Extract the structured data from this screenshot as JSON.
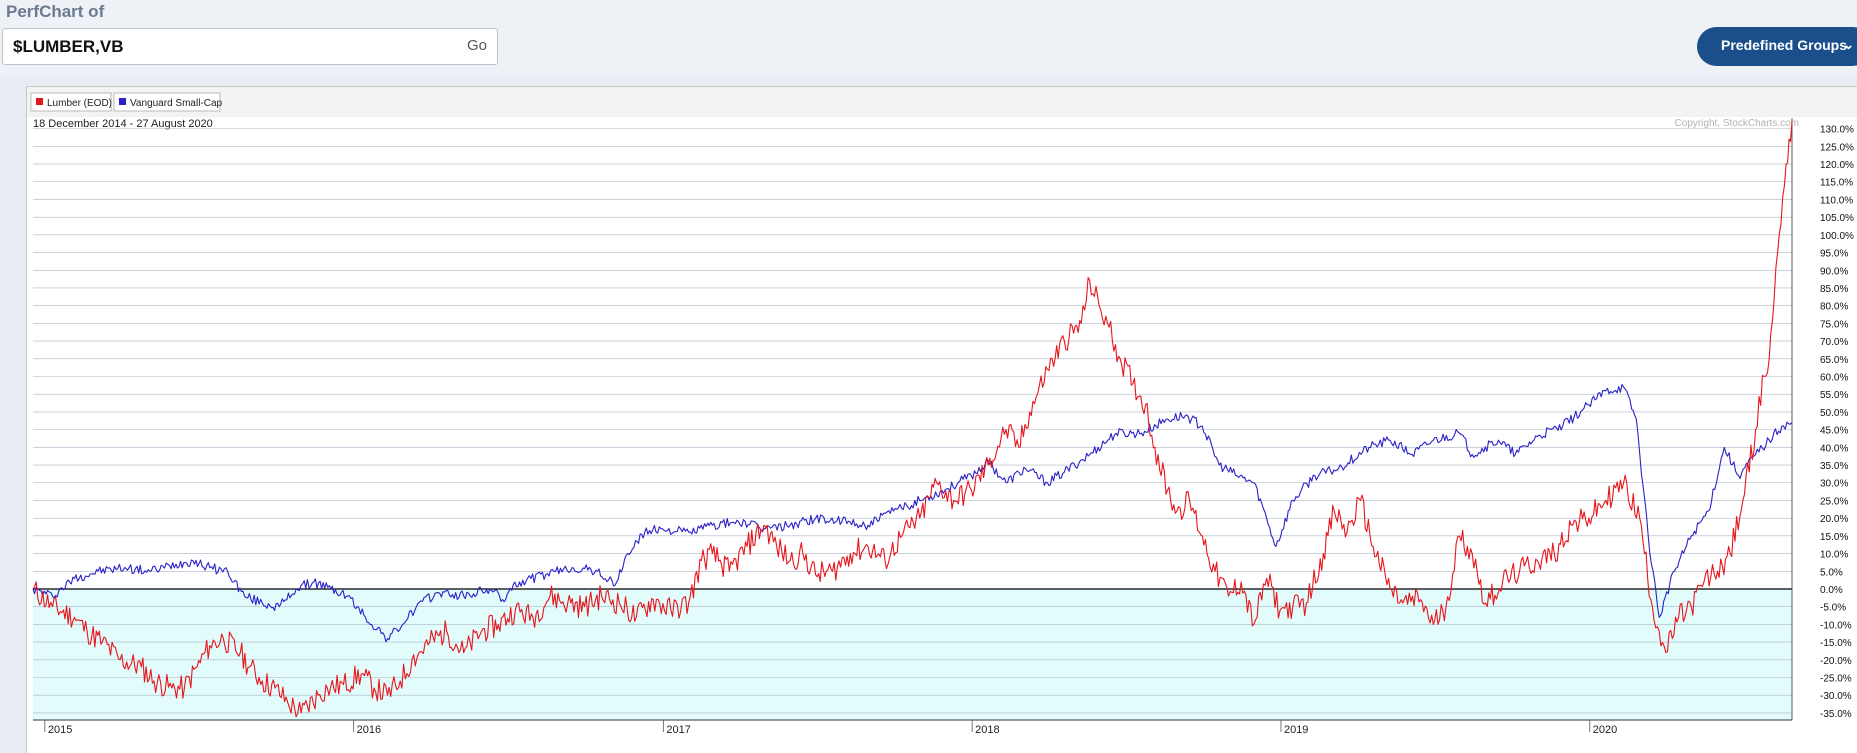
{
  "header": {
    "title": "PerfChart of",
    "symbols_value": "$LUMBER,VB",
    "go_label": "Go",
    "predefined_label": "Predefined Groups"
  },
  "colors": {
    "lumber": "#e8141b",
    "vb": "#2a22c8",
    "accent": "#1a4f8b",
    "negative_fill": "#e2fcfc"
  },
  "legend": [
    {
      "label": "Lumber (EOD)",
      "color": "#e8141b"
    },
    {
      "label": "Vanguard Small-Cap",
      "color": "#2a22c8"
    }
  ],
  "chart_data": {
    "type": "line",
    "date_range": "18 December 2014 - 27 August 2020",
    "copyright": "Copyright, StockCharts.com",
    "xlabels": [
      "2015",
      "2016",
      "2017",
      "2018",
      "2019",
      "2020"
    ],
    "x_range": [
      "2014-12-18",
      "2020-08-27"
    ],
    "y_range": [
      -37,
      133
    ],
    "y_ticks": [
      130,
      125,
      120,
      115,
      110,
      105,
      100,
      95,
      90,
      85,
      80,
      75,
      70,
      65,
      60,
      55,
      50,
      45,
      40,
      35,
      30,
      25,
      20,
      15,
      10,
      5,
      0,
      -5,
      -10,
      -15,
      -20,
      -25,
      -30,
      -35
    ],
    "y_unit": "%",
    "grid": true,
    "legend_position": "top-left",
    "series": [
      {
        "name": "Lumber (EOD)",
        "points": [
          [
            "2014-12-18",
            0
          ],
          [
            "2015-01-10",
            -5
          ],
          [
            "2015-02-05",
            -8
          ],
          [
            "2015-02-20",
            -12
          ],
          [
            "2015-03-10",
            -15
          ],
          [
            "2015-03-31",
            -20
          ],
          [
            "2015-04-25",
            -22
          ],
          [
            "2015-05-10",
            -26
          ],
          [
            "2015-05-31",
            -28
          ],
          [
            "2015-06-15",
            -28
          ],
          [
            "2015-06-30",
            -22
          ],
          [
            "2015-07-15",
            -16
          ],
          [
            "2015-07-31",
            -14
          ],
          [
            "2015-08-20",
            -18
          ],
          [
            "2015-08-31",
            -22
          ],
          [
            "2015-09-15",
            -26
          ],
          [
            "2015-09-30",
            -28
          ],
          [
            "2015-10-15",
            -32
          ],
          [
            "2015-10-31",
            -35
          ],
          [
            "2015-11-20",
            -30
          ],
          [
            "2015-12-01",
            -28
          ],
          [
            "2015-12-20",
            -27
          ],
          [
            "2016-01-10",
            -24
          ],
          [
            "2016-01-25",
            -28
          ],
          [
            "2016-02-10",
            -30
          ],
          [
            "2016-02-25",
            -26
          ],
          [
            "2016-03-10",
            -20
          ],
          [
            "2016-03-31",
            -15
          ],
          [
            "2016-04-20",
            -12
          ],
          [
            "2016-05-10",
            -18
          ],
          [
            "2016-05-31",
            -12
          ],
          [
            "2016-06-20",
            -10
          ],
          [
            "2016-07-10",
            -6
          ],
          [
            "2016-07-31",
            -8
          ],
          [
            "2016-08-20",
            -2
          ],
          [
            "2016-09-10",
            -4
          ],
          [
            "2016-09-30",
            -5
          ],
          [
            "2016-10-20",
            -2
          ],
          [
            "2016-11-10",
            -4
          ],
          [
            "2016-11-30",
            -8
          ],
          [
            "2016-12-20",
            -3
          ],
          [
            "2017-01-10",
            -6
          ],
          [
            "2017-01-31",
            -4
          ],
          [
            "2017-02-15",
            8
          ],
          [
            "2017-02-28",
            10
          ],
          [
            "2017-03-20",
            5
          ],
          [
            "2017-04-10",
            12
          ],
          [
            "2017-04-30",
            18
          ],
          [
            "2017-05-15",
            12
          ],
          [
            "2017-05-31",
            8
          ],
          [
            "2017-06-15",
            10
          ],
          [
            "2017-06-30",
            4
          ],
          [
            "2017-07-20",
            5
          ],
          [
            "2017-08-10",
            10
          ],
          [
            "2017-08-31",
            12
          ],
          [
            "2017-09-20",
            8
          ],
          [
            "2017-10-10",
            15
          ],
          [
            "2017-10-31",
            20
          ],
          [
            "2017-11-20",
            30
          ],
          [
            "2017-12-10",
            25
          ],
          [
            "2017-12-31",
            28
          ],
          [
            "2018-01-20",
            35
          ],
          [
            "2018-02-10",
            45
          ],
          [
            "2018-02-25",
            40
          ],
          [
            "2018-03-10",
            50
          ],
          [
            "2018-03-31",
            62
          ],
          [
            "2018-04-20",
            70
          ],
          [
            "2018-05-10",
            75
          ],
          [
            "2018-05-20",
            87
          ],
          [
            "2018-05-31",
            80
          ],
          [
            "2018-06-10",
            75
          ],
          [
            "2018-06-25",
            65
          ],
          [
            "2018-07-10",
            58
          ],
          [
            "2018-07-25",
            52
          ],
          [
            "2018-08-05",
            40
          ],
          [
            "2018-08-20",
            28
          ],
          [
            "2018-08-31",
            22
          ],
          [
            "2018-09-15",
            25
          ],
          [
            "2018-09-30",
            15
          ],
          [
            "2018-10-15",
            5
          ],
          [
            "2018-10-31",
            -2
          ],
          [
            "2018-11-15",
            2
          ],
          [
            "2018-11-30",
            -10
          ],
          [
            "2018-12-15",
            3
          ],
          [
            "2018-12-31",
            -6
          ],
          [
            "2019-01-15",
            -5
          ],
          [
            "2019-01-31",
            -4
          ],
          [
            "2019-02-20",
            10
          ],
          [
            "2019-03-05",
            22
          ],
          [
            "2019-03-20",
            16
          ],
          [
            "2019-04-05",
            25
          ],
          [
            "2019-04-20",
            12
          ],
          [
            "2019-05-10",
            0
          ],
          [
            "2019-05-25",
            -4
          ],
          [
            "2019-06-15",
            -3
          ],
          [
            "2019-06-30",
            -10
          ],
          [
            "2019-07-15",
            -5
          ],
          [
            "2019-07-31",
            15
          ],
          [
            "2019-08-15",
            10
          ],
          [
            "2019-08-31",
            -4
          ],
          [
            "2019-09-20",
            2
          ],
          [
            "2019-10-10",
            5
          ],
          [
            "2019-10-31",
            8
          ],
          [
            "2019-11-20",
            10
          ],
          [
            "2019-12-10",
            18
          ],
          [
            "2019-12-31",
            20
          ],
          [
            "2020-01-20",
            25
          ],
          [
            "2020-02-10",
            30
          ],
          [
            "2020-02-29",
            20
          ],
          [
            "2020-03-15",
            -5
          ],
          [
            "2020-03-31",
            -18
          ],
          [
            "2020-04-15",
            -8
          ],
          [
            "2020-04-30",
            -5
          ],
          [
            "2020-05-15",
            2
          ],
          [
            "2020-05-31",
            5
          ],
          [
            "2020-06-15",
            10
          ],
          [
            "2020-06-30",
            25
          ],
          [
            "2020-07-15",
            45
          ],
          [
            "2020-07-25",
            60
          ],
          [
            "2020-07-31",
            65
          ],
          [
            "2020-08-10",
            95
          ],
          [
            "2020-08-20",
            120
          ],
          [
            "2020-08-27",
            132
          ]
        ]
      },
      {
        "name": "Vanguard Small-Cap",
        "points": [
          [
            "2014-12-18",
            0
          ],
          [
            "2015-01-10",
            -2
          ],
          [
            "2015-02-05",
            3
          ],
          [
            "2015-03-05",
            5
          ],
          [
            "2015-04-05",
            6
          ],
          [
            "2015-05-05",
            5
          ],
          [
            "2015-06-05",
            7
          ],
          [
            "2015-06-25",
            8
          ],
          [
            "2015-07-15",
            6
          ],
          [
            "2015-08-05",
            5
          ],
          [
            "2015-08-25",
            -2
          ],
          [
            "2015-09-15",
            -4
          ],
          [
            "2015-10-05",
            -5
          ],
          [
            "2015-10-25",
            0
          ],
          [
            "2015-11-15",
            2
          ],
          [
            "2015-12-05",
            0
          ],
          [
            "2015-12-25",
            -2
          ],
          [
            "2016-01-15",
            -8
          ],
          [
            "2016-02-10",
            -14
          ],
          [
            "2016-02-28",
            -10
          ],
          [
            "2016-03-15",
            -5
          ],
          [
            "2016-04-10",
            -1
          ],
          [
            "2016-05-10",
            -2
          ],
          [
            "2016-06-10",
            0
          ],
          [
            "2016-06-25",
            -3
          ],
          [
            "2016-07-15",
            2
          ],
          [
            "2016-08-15",
            4
          ],
          [
            "2016-09-15",
            6
          ],
          [
            "2016-10-15",
            5
          ],
          [
            "2016-11-05",
            1
          ],
          [
            "2016-11-20",
            10
          ],
          [
            "2016-12-10",
            16
          ],
          [
            "2016-12-31",
            17
          ],
          [
            "2017-01-31",
            16
          ],
          [
            "2017-02-28",
            18
          ],
          [
            "2017-03-31",
            19
          ],
          [
            "2017-04-30",
            17
          ],
          [
            "2017-05-31",
            18
          ],
          [
            "2017-06-30",
            20
          ],
          [
            "2017-07-31",
            19
          ],
          [
            "2017-08-31",
            18
          ],
          [
            "2017-09-30",
            22
          ],
          [
            "2017-10-31",
            25
          ],
          [
            "2017-11-30",
            28
          ],
          [
            "2017-12-31",
            32
          ],
          [
            "2018-01-20",
            36
          ],
          [
            "2018-02-10",
            30
          ],
          [
            "2018-03-05",
            34
          ],
          [
            "2018-03-31",
            30
          ],
          [
            "2018-04-20",
            33
          ],
          [
            "2018-05-20",
            38
          ],
          [
            "2018-06-20",
            44
          ],
          [
            "2018-07-20",
            44
          ],
          [
            "2018-08-20",
            48
          ],
          [
            "2018-09-10",
            49
          ],
          [
            "2018-09-30",
            46
          ],
          [
            "2018-10-20",
            35
          ],
          [
            "2018-11-10",
            32
          ],
          [
            "2018-11-30",
            30
          ],
          [
            "2018-12-15",
            20
          ],
          [
            "2018-12-26",
            12
          ],
          [
            "2019-01-15",
            25
          ],
          [
            "2019-02-10",
            32
          ],
          [
            "2019-03-10",
            34
          ],
          [
            "2019-04-15",
            40
          ],
          [
            "2019-05-10",
            42
          ],
          [
            "2019-06-05",
            38
          ],
          [
            "2019-06-30",
            42
          ],
          [
            "2019-07-31",
            44
          ],
          [
            "2019-08-15",
            38
          ],
          [
            "2019-09-15",
            42
          ],
          [
            "2019-10-05",
            38
          ],
          [
            "2019-10-31",
            43
          ],
          [
            "2019-11-30",
            46
          ],
          [
            "2019-12-31",
            52
          ],
          [
            "2020-01-20",
            56
          ],
          [
            "2020-02-10",
            57
          ],
          [
            "2020-02-25",
            48
          ],
          [
            "2020-03-10",
            15
          ],
          [
            "2020-03-23",
            -8
          ],
          [
            "2020-04-10",
            5
          ],
          [
            "2020-04-30",
            15
          ],
          [
            "2020-05-20",
            22
          ],
          [
            "2020-06-08",
            40
          ],
          [
            "2020-06-25",
            32
          ],
          [
            "2020-07-15",
            38
          ],
          [
            "2020-07-31",
            42
          ],
          [
            "2020-08-15",
            46
          ],
          [
            "2020-08-27",
            47
          ]
        ]
      }
    ]
  }
}
